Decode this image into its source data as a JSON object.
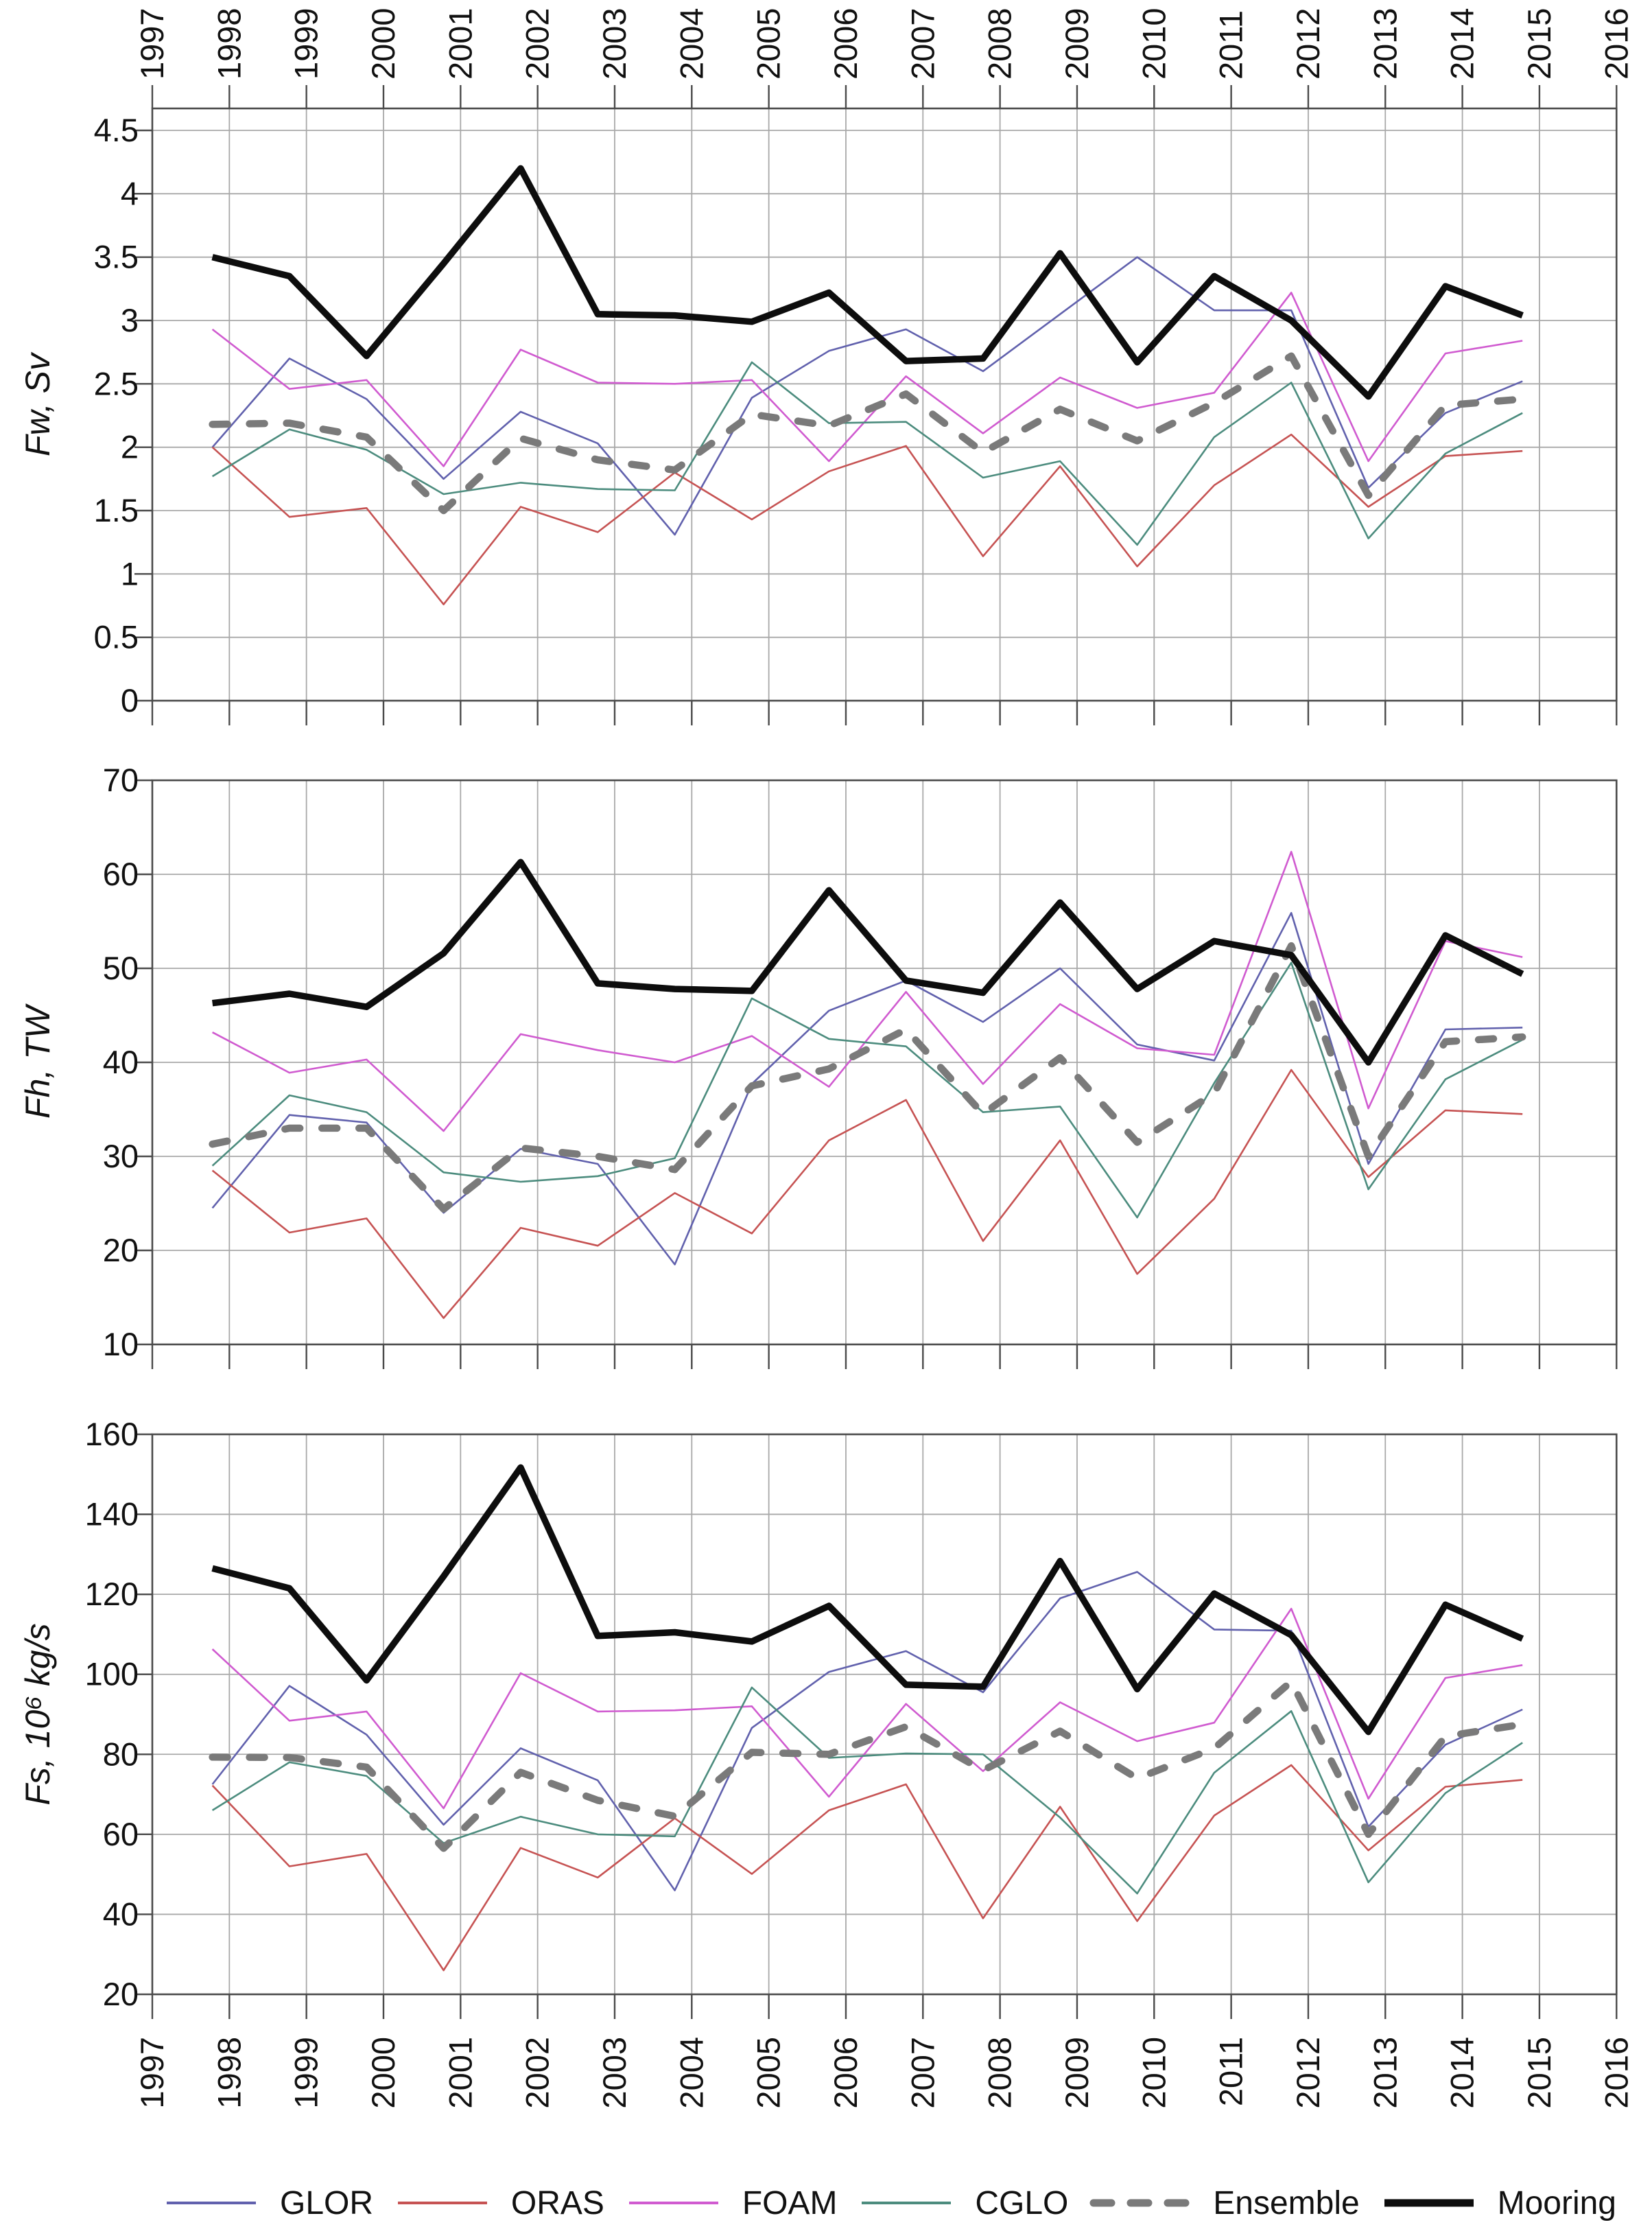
{
  "page": {
    "background": "#ffffff"
  },
  "axis": {
    "top_years": [
      1997,
      1998,
      1999,
      2000,
      2001,
      2002,
      2003,
      2004,
      2005,
      2006,
      2007,
      2008,
      2009,
      2010,
      2011,
      2012,
      2013,
      2014,
      2015,
      2016
    ],
    "bottom_years": [
      1997,
      1998,
      1999,
      2000,
      2001,
      2002,
      2003,
      2004,
      2005,
      2006,
      2007,
      2008,
      2009,
      2010,
      2011,
      2012,
      2013,
      2014,
      2015,
      2016
    ]
  },
  "panels": [
    {
      "ylabel": "Fw, Sv",
      "ytick_labels": [
        "4.5",
        "4",
        "3.5",
        "3",
        "2.5",
        "2",
        "1.5",
        "1",
        "0.5",
        "0"
      ],
      "ytick_values": [
        4.5,
        4,
        3.5,
        3,
        2.5,
        2,
        1.5,
        1,
        0.5,
        0
      ]
    },
    {
      "ylabel": "Fh, TW",
      "ytick_labels": [
        "70",
        "60",
        "50",
        "40",
        "30",
        "20",
        "10"
      ],
      "ytick_values": [
        70,
        60,
        50,
        40,
        30,
        20,
        10
      ]
    },
    {
      "ylabel": "Fs, 10⁶ kg/s",
      "ytick_labels": [
        "160",
        "140",
        "120",
        "100",
        "80",
        "60",
        "40",
        "20"
      ],
      "ytick_values": [
        160,
        140,
        120,
        100,
        80,
        60,
        40,
        20
      ]
    }
  ],
  "legend": {
    "items": [
      {
        "label": "GLOR",
        "color": "#6161ad",
        "style": "thin"
      },
      {
        "label": "ORAS",
        "color": "#c65353",
        "style": "thin"
      },
      {
        "label": "FOAM",
        "color": "#d05bd0",
        "style": "thin"
      },
      {
        "label": "CGLO",
        "color": "#4c8c7e",
        "style": "thin"
      },
      {
        "label": "Ensemble",
        "color": "#7a7a7a",
        "style": "dashed-thick"
      },
      {
        "label": "Mooring",
        "color": "#0d0d0d",
        "style": "solid-thick"
      }
    ]
  },
  "chart_data": [
    {
      "type": "line",
      "title": "",
      "ylabel": "Fw, Sv",
      "ylim": [
        0,
        4.5
      ],
      "x": [
        1998,
        1999,
        2000,
        2001,
        2002,
        2003,
        2004,
        2005,
        2006,
        2007,
        2008,
        2009,
        2010,
        2011,
        2012,
        2013,
        2014,
        2015
      ],
      "xlim": [
        1997,
        2016
      ],
      "grid": true,
      "legend_position": "bottom",
      "series": [
        {
          "name": "GLOR",
          "values": [
            2.0,
            2.7,
            2.38,
            1.75,
            2.28,
            2.03,
            1.31,
            2.39,
            2.76,
            2.93,
            2.6,
            3.05,
            3.5,
            3.08,
            3.08,
            1.68,
            2.27,
            2.52
          ]
        },
        {
          "name": "ORAS",
          "values": [
            2.0,
            1.45,
            1.52,
            0.76,
            1.53,
            1.33,
            1.8,
            1.43,
            1.81,
            2.01,
            1.14,
            1.85,
            1.06,
            1.7,
            2.1,
            1.53,
            1.93,
            1.97
          ]
        },
        {
          "name": "FOAM",
          "values": [
            2.93,
            2.46,
            2.53,
            1.85,
            2.77,
            2.51,
            2.5,
            2.53,
            1.89,
            2.56,
            2.11,
            2.55,
            2.31,
            2.43,
            3.22,
            1.89,
            2.74,
            2.84
          ]
        },
        {
          "name": "CGLO",
          "values": [
            1.77,
            2.14,
            1.98,
            1.63,
            1.72,
            1.67,
            1.66,
            2.67,
            2.19,
            2.2,
            1.76,
            1.89,
            1.23,
            2.08,
            2.51,
            1.28,
            1.95,
            2.27
          ]
        },
        {
          "name": "Ensemble",
          "values": [
            2.18,
            2.19,
            2.08,
            1.5,
            2.07,
            1.9,
            1.82,
            2.26,
            2.17,
            2.42,
            1.96,
            2.3,
            2.05,
            2.35,
            2.72,
            1.62,
            2.33,
            2.38
          ]
        },
        {
          "name": "Mooring",
          "values": [
            3.5,
            3.35,
            2.72,
            3.45,
            4.2,
            3.05,
            3.04,
            2.99,
            3.22,
            2.68,
            2.7,
            3.53,
            2.67,
            3.35,
            3.0,
            2.4,
            3.27,
            3.04
          ]
        }
      ]
    },
    {
      "type": "line",
      "title": "",
      "ylabel": "Fh, TW",
      "ylim": [
        10,
        70
      ],
      "x": [
        1998,
        1999,
        2000,
        2001,
        2002,
        2003,
        2004,
        2005,
        2006,
        2007,
        2008,
        2009,
        2010,
        2011,
        2012,
        2013,
        2014,
        2015
      ],
      "xlim": [
        1997,
        2016
      ],
      "grid": true,
      "legend_position": "bottom",
      "series": [
        {
          "name": "GLOR",
          "values": [
            24.5,
            34.4,
            33.6,
            24.0,
            30.8,
            29.2,
            18.5,
            37.7,
            45.5,
            48.7,
            44.3,
            50.0,
            41.9,
            40.2,
            55.9,
            29.2,
            43.5,
            43.7
          ]
        },
        {
          "name": "ORAS",
          "values": [
            28.5,
            21.9,
            23.4,
            12.8,
            22.4,
            20.5,
            26.1,
            21.8,
            31.7,
            36.0,
            21.0,
            31.7,
            17.5,
            25.5,
            39.2,
            27.8,
            34.9,
            34.5
          ]
        },
        {
          "name": "FOAM",
          "values": [
            43.2,
            38.9,
            40.3,
            32.7,
            43.0,
            41.3,
            40.0,
            42.8,
            37.4,
            47.5,
            37.7,
            46.2,
            41.5,
            40.8,
            62.4,
            35.1,
            52.9,
            51.2
          ]
        },
        {
          "name": "CGLO",
          "values": [
            29.0,
            36.5,
            34.7,
            28.3,
            27.3,
            27.9,
            29.8,
            46.8,
            42.5,
            41.7,
            34.7,
            35.3,
            23.5,
            37.8,
            50.6,
            26.5,
            38.2,
            42.4
          ]
        },
        {
          "name": "Ensemble",
          "values": [
            31.3,
            33.0,
            33.0,
            24.4,
            30.9,
            30.0,
            28.6,
            37.5,
            39.3,
            43.5,
            34.5,
            40.5,
            31.5,
            36.7,
            52.4,
            30.0,
            42.2,
            42.7
          ]
        },
        {
          "name": "Mooring",
          "values": [
            46.3,
            47.3,
            45.9,
            51.6,
            61.3,
            48.4,
            47.8,
            47.6,
            58.3,
            48.7,
            47.4,
            57.0,
            47.8,
            52.9,
            51.4,
            40.0,
            53.5,
            49.4
          ]
        }
      ]
    },
    {
      "type": "line",
      "title": "",
      "ylabel": "Fs, 10⁶ kg/s",
      "ylim": [
        20,
        160
      ],
      "x": [
        1998,
        1999,
        2000,
        2001,
        2002,
        2003,
        2004,
        2005,
        2006,
        2007,
        2008,
        2009,
        2010,
        2011,
        2012,
        2013,
        2014,
        2015
      ],
      "xlim": [
        1997,
        2016
      ],
      "grid": true,
      "legend_position": "bottom",
      "series": [
        {
          "name": "GLOR",
          "values": [
            72.5,
            97.1,
            84.9,
            62.4,
            81.5,
            73.5,
            46.0,
            86.6,
            100.6,
            105.8,
            95.5,
            119.0,
            125.6,
            111.2,
            110.9,
            61.9,
            82.4,
            91.2
          ]
        },
        {
          "name": "ORAS",
          "values": [
            72.2,
            52.0,
            55.1,
            26.0,
            56.6,
            49.2,
            64.0,
            50.1,
            66.0,
            72.5,
            39.0,
            66.9,
            38.3,
            64.7,
            77.3,
            56.0,
            71.9,
            73.6
          ]
        },
        {
          "name": "FOAM",
          "values": [
            106.3,
            88.4,
            90.7,
            66.5,
            100.3,
            90.7,
            91.0,
            92.0,
            69.4,
            92.6,
            75.8,
            93.0,
            83.3,
            87.9,
            116.4,
            68.9,
            99.1,
            102.3
          ]
        },
        {
          "name": "CGLO",
          "values": [
            66.0,
            78.0,
            74.6,
            57.8,
            64.4,
            60.0,
            59.5,
            96.7,
            79.1,
            80.2,
            80.0,
            64.2,
            45.2,
            75.4,
            90.8,
            48.0,
            70.3,
            82.9
          ]
        },
        {
          "name": "Ensemble",
          "values": [
            79.3,
            79.2,
            76.8,
            56.5,
            75.5,
            68.5,
            64.5,
            80.5,
            80.0,
            86.9,
            76.0,
            85.8,
            74.0,
            81.5,
            98.2,
            60.0,
            84.5,
            87.5
          ]
        },
        {
          "name": "Mooring",
          "values": [
            126.5,
            121.5,
            98.5,
            124.5,
            151.7,
            109.6,
            110.5,
            108.2,
            117.1,
            97.4,
            96.9,
            128.3,
            96.3,
            120.2,
            109.8,
            85.6,
            117.4,
            108.9
          ]
        }
      ]
    }
  ]
}
